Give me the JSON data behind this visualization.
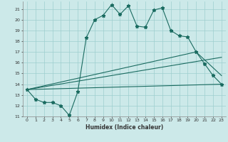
{
  "xlabel": "Humidex (Indice chaleur)",
  "xlim": [
    -0.5,
    23.5
  ],
  "ylim": [
    11,
    21.7
  ],
  "yticks": [
    11,
    12,
    13,
    14,
    15,
    16,
    17,
    18,
    19,
    20,
    21
  ],
  "xticks": [
    0,
    1,
    2,
    3,
    4,
    5,
    6,
    7,
    8,
    9,
    10,
    11,
    12,
    13,
    14,
    15,
    16,
    17,
    18,
    19,
    20,
    21,
    22,
    23
  ],
  "background_color": "#cce9e9",
  "grid_color": "#9ecece",
  "line_color": "#1a6b60",
  "main_line": {
    "x": [
      0,
      1,
      2,
      3,
      4,
      5,
      6,
      7,
      8,
      9,
      10,
      11,
      12,
      13,
      14,
      15,
      16,
      17,
      18,
      19,
      20,
      21,
      22,
      23
    ],
    "y": [
      13.5,
      12.6,
      12.3,
      12.3,
      12.0,
      11.1,
      13.3,
      18.3,
      20.0,
      20.4,
      21.4,
      20.5,
      21.3,
      19.4,
      19.3,
      20.9,
      21.1,
      19.0,
      18.5,
      18.4,
      17.0,
      15.9,
      14.8,
      14.0
    ]
  },
  "straight_lines": [
    {
      "x": [
        0,
        23
      ],
      "y": [
        13.5,
        14.0
      ]
    },
    {
      "x": [
        0,
        23
      ],
      "y": [
        13.5,
        16.5
      ]
    },
    {
      "x": [
        0,
        20,
        23
      ],
      "y": [
        13.5,
        17.0,
        14.8
      ]
    }
  ]
}
